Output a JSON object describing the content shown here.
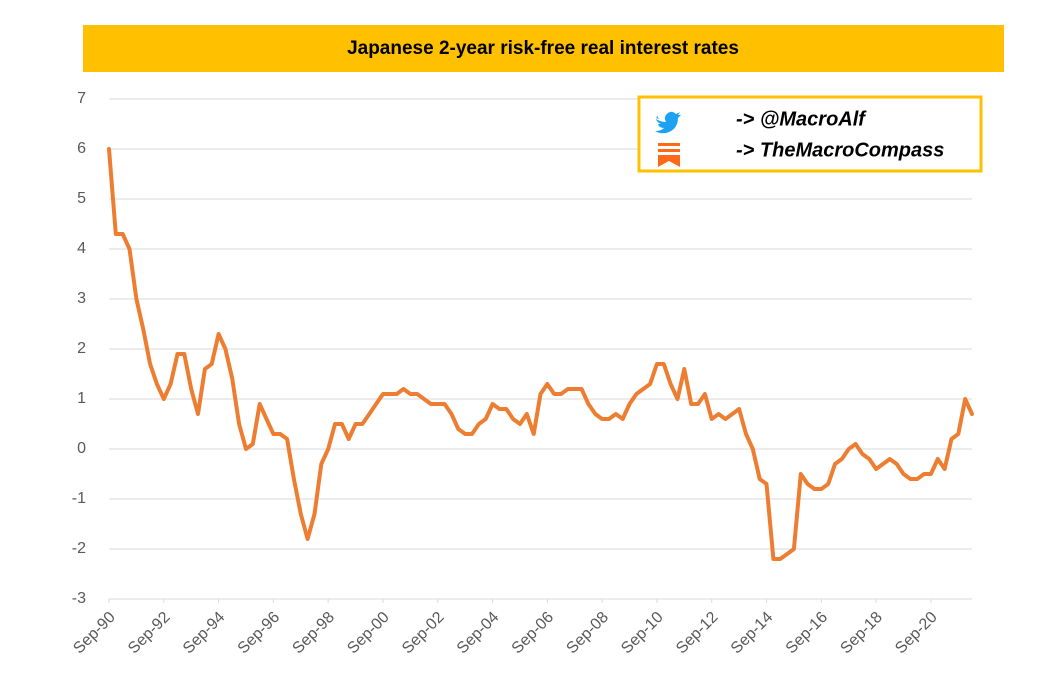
{
  "chart_data": {
    "type": "line",
    "title": "Japanese 2-year risk-free real interest rates",
    "annotations": [
      "-> @MacroAlf",
      "-> TheMacroCompass"
    ],
    "color": "#ed7d31",
    "grid": true,
    "ylim": [
      -3,
      7
    ],
    "yticks": [
      -3,
      -2,
      -1,
      0,
      1,
      2,
      3,
      4,
      5,
      6,
      7
    ],
    "xlim": [
      1990.75,
      2022.25
    ],
    "xticks": [
      {
        "value": 1990.75,
        "label": "Sep-90"
      },
      {
        "value": 1992.75,
        "label": "Sep-92"
      },
      {
        "value": 1994.75,
        "label": "Sep-94"
      },
      {
        "value": 1996.75,
        "label": "Sep-96"
      },
      {
        "value": 1998.75,
        "label": "Sep-98"
      },
      {
        "value": 2000.75,
        "label": "Sep-00"
      },
      {
        "value": 2002.75,
        "label": "Sep-02"
      },
      {
        "value": 2004.75,
        "label": "Sep-04"
      },
      {
        "value": 2006.75,
        "label": "Sep-06"
      },
      {
        "value": 2008.75,
        "label": "Sep-08"
      },
      {
        "value": 2010.75,
        "label": "Sep-10"
      },
      {
        "value": 2012.75,
        "label": "Sep-12"
      },
      {
        "value": 2014.75,
        "label": "Sep-14"
      },
      {
        "value": 2016.75,
        "label": "Sep-16"
      },
      {
        "value": 2018.75,
        "label": "Sep-18"
      },
      {
        "value": 2020.75,
        "label": "Sep-20"
      }
    ],
    "x": [
      1990.75,
      1991,
      1991.25,
      1991.5,
      1991.75,
      1992,
      1992.25,
      1992.5,
      1992.75,
      1993,
      1993.25,
      1993.5,
      1993.75,
      1994,
      1994.25,
      1994.5,
      1994.75,
      1995,
      1995.25,
      1995.5,
      1995.75,
      1996,
      1996.25,
      1996.5,
      1996.75,
      1997,
      1997.25,
      1997.5,
      1997.75,
      1998,
      1998.25,
      1998.5,
      1998.75,
      1999,
      1999.25,
      1999.5,
      1999.75,
      2000,
      2000.25,
      2000.5,
      2000.75,
      2001,
      2001.25,
      2001.5,
      2001.75,
      2002,
      2002.25,
      2002.5,
      2002.75,
      2003,
      2003.25,
      2003.5,
      2003.75,
      2004,
      2004.25,
      2004.5,
      2004.75,
      2005,
      2005.25,
      2005.5,
      2005.75,
      2006,
      2006.25,
      2006.5,
      2006.75,
      2007,
      2007.25,
      2007.5,
      2007.75,
      2008,
      2008.25,
      2008.5,
      2008.75,
      2009,
      2009.25,
      2009.5,
      2009.75,
      2010,
      2010.25,
      2010.5,
      2010.75,
      2011,
      2011.25,
      2011.5,
      2011.75,
      2012,
      2012.25,
      2012.5,
      2012.75,
      2013,
      2013.25,
      2013.5,
      2013.75,
      2014,
      2014.25,
      2014.5,
      2014.75,
      2015,
      2015.25,
      2015.5,
      2015.75,
      2016,
      2016.25,
      2016.5,
      2016.75,
      2017,
      2017.25,
      2017.5,
      2017.75,
      2018,
      2018.25,
      2018.5,
      2018.75,
      2019,
      2019.25,
      2019.5,
      2019.75,
      2020,
      2020.25,
      2020.5,
      2020.75,
      2021,
      2021.25,
      2021.5,
      2021.75,
      2022,
      2022.25
    ],
    "values": [
      6.0,
      4.3,
      4.3,
      4.0,
      3.0,
      2.4,
      1.7,
      1.3,
      1.0,
      1.3,
      1.9,
      1.9,
      1.2,
      0.7,
      1.6,
      1.7,
      2.3,
      2.0,
      1.4,
      0.5,
      0.0,
      0.1,
      0.9,
      0.6,
      0.3,
      0.3,
      0.2,
      -0.6,
      -1.3,
      -1.8,
      -1.3,
      -0.3,
      0.0,
      0.5,
      0.5,
      0.2,
      0.5,
      0.5,
      0.7,
      0.9,
      1.1,
      1.1,
      1.1,
      1.2,
      1.1,
      1.1,
      1.0,
      0.9,
      0.9,
      0.9,
      0.7,
      0.4,
      0.3,
      0.3,
      0.5,
      0.6,
      0.9,
      0.8,
      0.8,
      0.6,
      0.5,
      0.7,
      0.3,
      1.1,
      1.3,
      1.1,
      1.1,
      1.2,
      1.2,
      1.2,
      0.9,
      0.7,
      0.6,
      0.6,
      0.7,
      0.6,
      0.9,
      1.1,
      1.2,
      1.3,
      1.7,
      1.7,
      1.3,
      1.0,
      1.6,
      0.9,
      0.9,
      1.1,
      0.6,
      0.7,
      0.6,
      0.7,
      0.8,
      0.3,
      0.0,
      -0.6,
      -0.7,
      -2.2,
      -2.2,
      -2.1,
      -2.0,
      -0.5,
      -0.7,
      -0.8,
      -0.8,
      -0.7,
      -0.3,
      -0.2,
      0.0,
      0.1,
      -0.1,
      -0.2,
      -0.4,
      -0.3,
      -0.2,
      -0.3,
      -0.5,
      -0.6,
      -0.6,
      -0.5,
      -0.5,
      -0.2,
      -0.4,
      0.2,
      0.3,
      1.0,
      0.7
    ]
  }
}
